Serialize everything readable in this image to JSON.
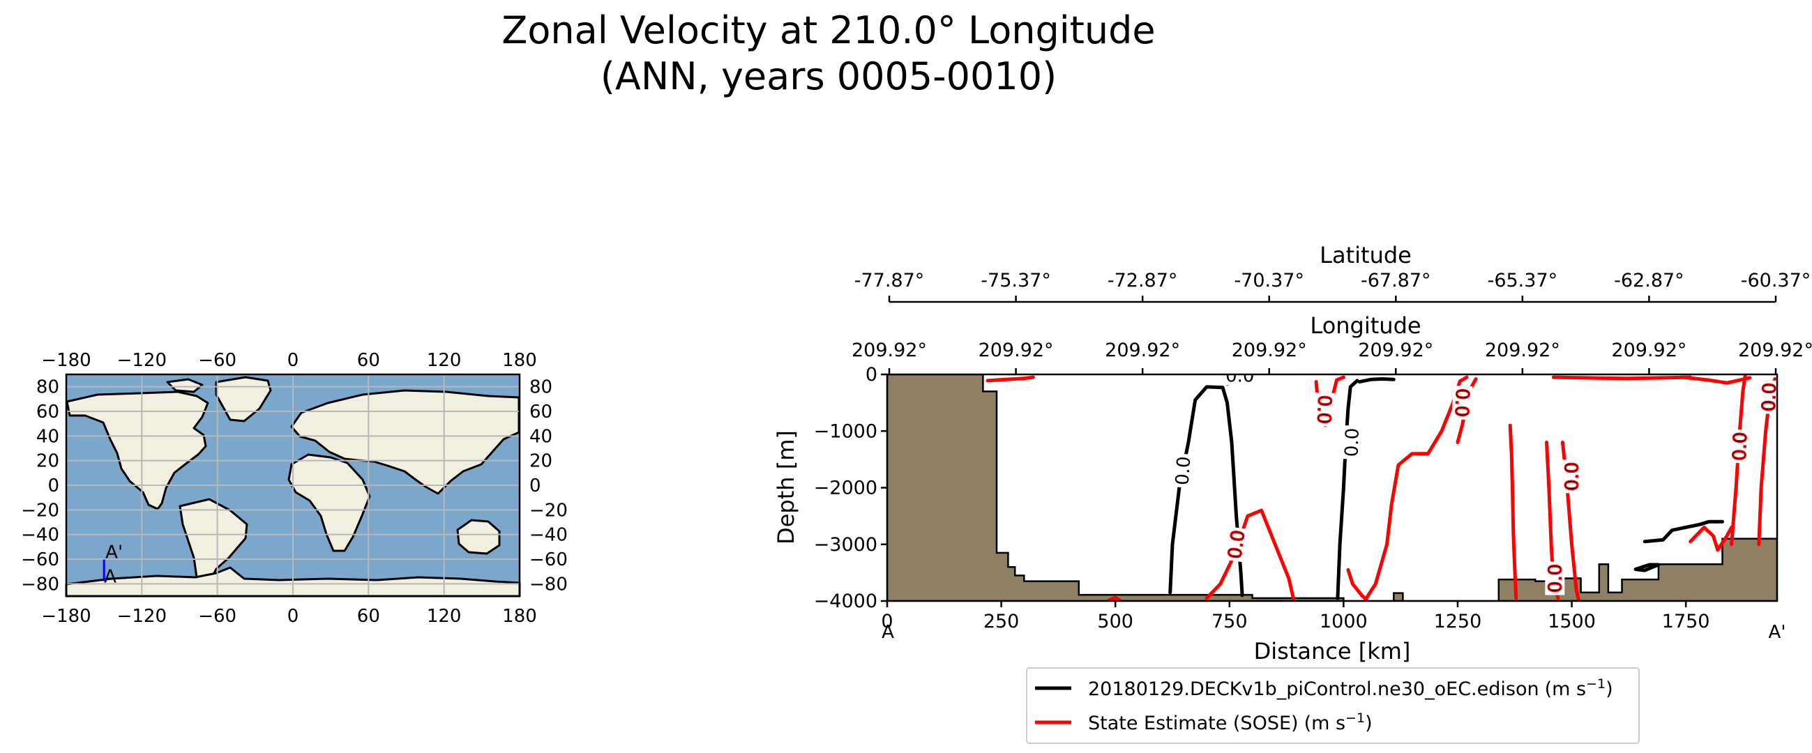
{
  "figure": {
    "title_line1": "Zonal Velocity at 210.0° Longitude",
    "title_line2": "(ANN, years 0005-0010)"
  },
  "colors": {
    "ocean": "#7ba7cc",
    "land": "#f1efdf",
    "bathymetry": "#8f7f63",
    "model": "#000000",
    "obs": "#ff0000",
    "transect": "#0000ff",
    "grid": "#b8b8b8"
  },
  "map": {
    "lon_ticks": [
      "−180",
      "−120",
      "−60",
      "0",
      "60",
      "120",
      "180"
    ],
    "lat_ticks": [
      "80",
      "60",
      "40",
      "20",
      "0",
      "−20",
      "−40",
      "−60",
      "−80"
    ],
    "lon_values": [
      -180,
      -120,
      -60,
      0,
      60,
      120,
      180
    ],
    "lat_values": [
      80,
      60,
      40,
      20,
      0,
      -20,
      -40,
      -60,
      -80
    ],
    "transect": {
      "lon": -150,
      "lat_start": -77.87,
      "lat_end": -60.37,
      "start_label": "A",
      "end_label": "A'"
    }
  },
  "chart_data": [
    {
      "type": "contour",
      "title": "Zonal Velocity at 210.0° Longitude (ANN, years 0005-0010)",
      "xlabel": "Distance [km]",
      "ylabel": "Depth [m]",
      "xlim": [
        0,
        1950
      ],
      "ylim": [
        -4000,
        0
      ],
      "x_ticks": [
        0,
        250,
        500,
        750,
        1000,
        1250,
        1500,
        1750
      ],
      "x_tick_labels": [
        "0",
        "250",
        "500",
        "750",
        "1000",
        "1250",
        "1500",
        "1750"
      ],
      "y_ticks": [
        0,
        -1000,
        -2000,
        -3000,
        -4000
      ],
      "y_tick_labels": [
        "0",
        "−1000",
        "−2000",
        "−3000",
        "−4000"
      ],
      "section_ends": {
        "start": "A",
        "end": "A'"
      },
      "latitude_axis": {
        "label": "Latitude",
        "ticks": [
          "-77.87°",
          "-75.37°",
          "-72.87°",
          "-70.37°",
          "-67.87°",
          "-65.37°",
          "-62.87°",
          "-60.37°"
        ]
      },
      "longitude_axis": {
        "label": "Longitude",
        "ticks": [
          "209.92°",
          "209.92°",
          "209.92°",
          "209.92°",
          "209.92°",
          "209.92°",
          "209.92°",
          "209.92°"
        ]
      },
      "bathymetry": [
        [
          0,
          0
        ],
        [
          210,
          0
        ],
        [
          210,
          -300
        ],
        [
          240,
          -300
        ],
        [
          240,
          -3150
        ],
        [
          265,
          -3150
        ],
        [
          265,
          -3400
        ],
        [
          280,
          -3400
        ],
        [
          280,
          -3550
        ],
        [
          300,
          -3550
        ],
        [
          300,
          -3650
        ],
        [
          420,
          -3650
        ],
        [
          420,
          -3890
        ],
        [
          800,
          -3890
        ],
        [
          800,
          -3950
        ],
        [
          1000,
          -3950
        ],
        [
          1000,
          -4000
        ],
        [
          1110,
          -4000
        ],
        [
          1110,
          -3860
        ],
        [
          1130,
          -3860
        ],
        [
          1130,
          -4000
        ],
        [
          1340,
          -4000
        ],
        [
          1340,
          -3620
        ],
        [
          1420,
          -3620
        ],
        [
          1420,
          -3650
        ],
        [
          1480,
          -3650
        ],
        [
          1480,
          -3600
        ],
        [
          1520,
          -3600
        ],
        [
          1520,
          -3850
        ],
        [
          1560,
          -3850
        ],
        [
          1560,
          -3350
        ],
        [
          1580,
          -3350
        ],
        [
          1580,
          -3850
        ],
        [
          1610,
          -3850
        ],
        [
          1610,
          -3620
        ],
        [
          1690,
          -3620
        ],
        [
          1690,
          -3350
        ],
        [
          1830,
          -3350
        ],
        [
          1830,
          -2900
        ],
        [
          1950,
          -2900
        ],
        [
          1950,
          -4000
        ],
        [
          0,
          -4000
        ]
      ],
      "series": [
        {
          "name": "20180129.DECKv1b_piControl.ne30_oEC.edison",
          "unit": "(m s",
          "unit_exp": "−1",
          "unit_close": ")",
          "color": "#000000",
          "contour_label": "0.0",
          "lines": [
            [
              [
                620,
                -3850
              ],
              [
                625,
                -3000
              ],
              [
                640,
                -2000
              ],
              [
                660,
                -1200
              ],
              [
                675,
                -450
              ],
              [
                700,
                -220
              ],
              [
                735,
                -230
              ],
              [
                745,
                -500
              ],
              [
                755,
                -1200
              ],
              [
                765,
                -2500
              ],
              [
                775,
                -3500
              ],
              [
                778,
                -3900
              ]
            ],
            [
              [
                745,
                -170
              ],
              [
                760,
                -140
              ],
              [
                775,
                -120
              ]
            ],
            [
              [
                987,
                -3950
              ],
              [
                992,
                -3000
              ],
              [
                1000,
                -2000
              ],
              [
                1005,
                -1200
              ],
              [
                1010,
                -600
              ],
              [
                1015,
                -220
              ],
              [
                1030,
                -110
              ]
            ],
            [
              [
                1035,
                -130
              ],
              [
                1060,
                -90
              ],
              [
                1085,
                -80
              ],
              [
                1110,
                -90
              ]
            ],
            [
              [
                1640,
                -3440
              ],
              [
                1670,
                -3360
              ],
              [
                1690,
                -3360
              ],
              [
                1660,
                -3460
              ],
              [
                1640,
                -3440
              ]
            ],
            [
              [
                1660,
                -2950
              ],
              [
                1700,
                -2920
              ],
              [
                1720,
                -2750
              ],
              [
                1780,
                -2650
              ],
              [
                1800,
                -2600
              ],
              [
                1830,
                -2600
              ]
            ]
          ]
        },
        {
          "name": "State Estimate (SOSE)",
          "unit": "(m s",
          "unit_exp": "−1",
          "unit_close": ")",
          "color": "#ff0000",
          "contour_label": "0.0",
          "lines": [
            [
              [
                220,
                -110
              ],
              [
                260,
                -90
              ],
              [
                300,
                -70
              ],
              [
                320,
                -50
              ]
            ],
            [
              [
                700,
                -3950
              ],
              [
                730,
                -3700
              ],
              [
                760,
                -3200
              ],
              [
                790,
                -2500
              ],
              [
                820,
                -2400
              ],
              [
                840,
                -2800
              ],
              [
                860,
                -3200
              ],
              [
                880,
                -3600
              ],
              [
                890,
                -3950
              ]
            ],
            [
              [
                485,
                -3990
              ],
              [
                500,
                -3940
              ],
              [
                510,
                -3990
              ]
            ],
            [
              [
                940,
                -130
              ],
              [
                945,
                -600
              ],
              [
                960,
                -900
              ],
              [
                985,
                -100
              ],
              [
                1000,
                -50
              ]
            ],
            [
              [
                1010,
                -3450
              ],
              [
                1020,
                -3700
              ],
              [
                1040,
                -3900
              ],
              [
                1050,
                -3980
              ]
            ],
            [
              [
                1050,
                -3950
              ],
              [
                1070,
                -3700
              ],
              [
                1095,
                -3000
              ],
              [
                1105,
                -2300
              ],
              [
                1120,
                -1600
              ],
              [
                1150,
                -1400
              ],
              [
                1185,
                -1400
              ],
              [
                1200,
                -1200
              ],
              [
                1215,
                -1000
              ],
              [
                1240,
                -500
              ],
              [
                1255,
                -120
              ],
              [
                1270,
                -50
              ]
            ],
            [
              [
                1250,
                -1200
              ],
              [
                1260,
                -900
              ],
              [
                1275,
                -300
              ],
              [
                1290,
                -80
              ]
            ],
            [
              [
                1365,
                -900
              ],
              [
                1368,
                -1400
              ],
              [
                1370,
                -2000
              ],
              [
                1372,
                -2800
              ],
              [
                1375,
                -3400
              ],
              [
                1378,
                -3950
              ]
            ],
            [
              [
                1445,
                -1200
              ],
              [
                1450,
                -2000
              ],
              [
                1455,
                -3000
              ],
              [
                1460,
                -3700
              ],
              [
                1470,
                -3950
              ]
            ],
            [
              [
                1480,
                -1200
              ],
              [
                1490,
                -2000
              ],
              [
                1500,
                -3000
              ],
              [
                1510,
                -3800
              ],
              [
                1515,
                -3980
              ]
            ],
            [
              [
                1460,
                -50
              ],
              [
                1530,
                -60
              ],
              [
                1620,
                -70
              ],
              [
                1700,
                -60
              ],
              [
                1760,
                -50
              ]
            ],
            [
              [
                1760,
                -2950
              ],
              [
                1790,
                -2700
              ],
              [
                1810,
                -2850
              ],
              [
                1820,
                -3100
              ],
              [
                1840,
                -2850
              ],
              [
                1850,
                -2700
              ]
            ],
            [
              [
                1850,
                -3000
              ],
              [
                1860,
                -2000
              ],
              [
                1868,
                -1000
              ],
              [
                1875,
                -300
              ],
              [
                1880,
                -20
              ]
            ],
            [
              [
                1910,
                -3000
              ],
              [
                1915,
                -2000
              ],
              [
                1925,
                -1000
              ],
              [
                1935,
                -300
              ],
              [
                1945,
                -80
              ]
            ],
            [
              [
                1745,
                -50
              ],
              [
                1800,
                -100
              ],
              [
                1840,
                -150
              ],
              [
                1890,
                -60
              ]
            ]
          ]
        }
      ],
      "contour_labels": [
        {
          "series": 0,
          "x": 648,
          "y": -1700,
          "rot": -86
        },
        {
          "series": 0,
          "x": 1018,
          "y": -1200,
          "rot": -88
        },
        {
          "series": 0,
          "x": 773,
          "y": -20,
          "rot": 0
        },
        {
          "series": 1,
          "x": 958,
          "y": -620,
          "rot": 92
        },
        {
          "series": 1,
          "x": 1260,
          "y": -500,
          "rot": 92
        },
        {
          "series": 1,
          "x": 765,
          "y": -3000,
          "rot": -82
        },
        {
          "series": 1,
          "x": 1463,
          "y": -3600,
          "rot": -90
        },
        {
          "series": 1,
          "x": 1500,
          "y": -1800,
          "rot": -90
        },
        {
          "series": 1,
          "x": 1868,
          "y": -1270,
          "rot": -88
        },
        {
          "series": 1,
          "x": 1932,
          "y": -400,
          "rot": -88
        }
      ]
    }
  ]
}
